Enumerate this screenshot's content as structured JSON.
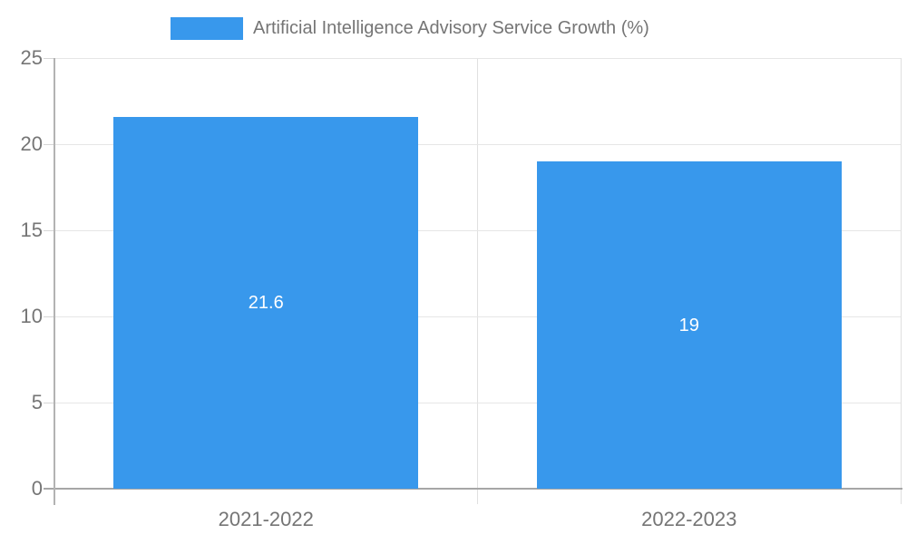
{
  "legend": {
    "label": "Artificial Intelligence Advisory Service Growth (%)"
  },
  "chart_data": {
    "type": "bar",
    "title": "Artificial Intelligence Advisory Service Growth (%)",
    "categories": [
      "2021-2022",
      "2022-2023"
    ],
    "values": [
      21.6,
      19
    ],
    "value_labels": [
      "21.6",
      "19"
    ],
    "xlabel": "",
    "ylabel": "",
    "ylim": [
      0,
      25
    ],
    "yticks": [
      0,
      5,
      10,
      15,
      20,
      25
    ],
    "grid": true,
    "legend_position": "top",
    "colors": {
      "bar": "#3898ec",
      "bar_value_text": "#ffffff",
      "axis_text": "#757575",
      "gridline": "#e6e6e6",
      "axis_line": "#a6a6a6"
    }
  }
}
